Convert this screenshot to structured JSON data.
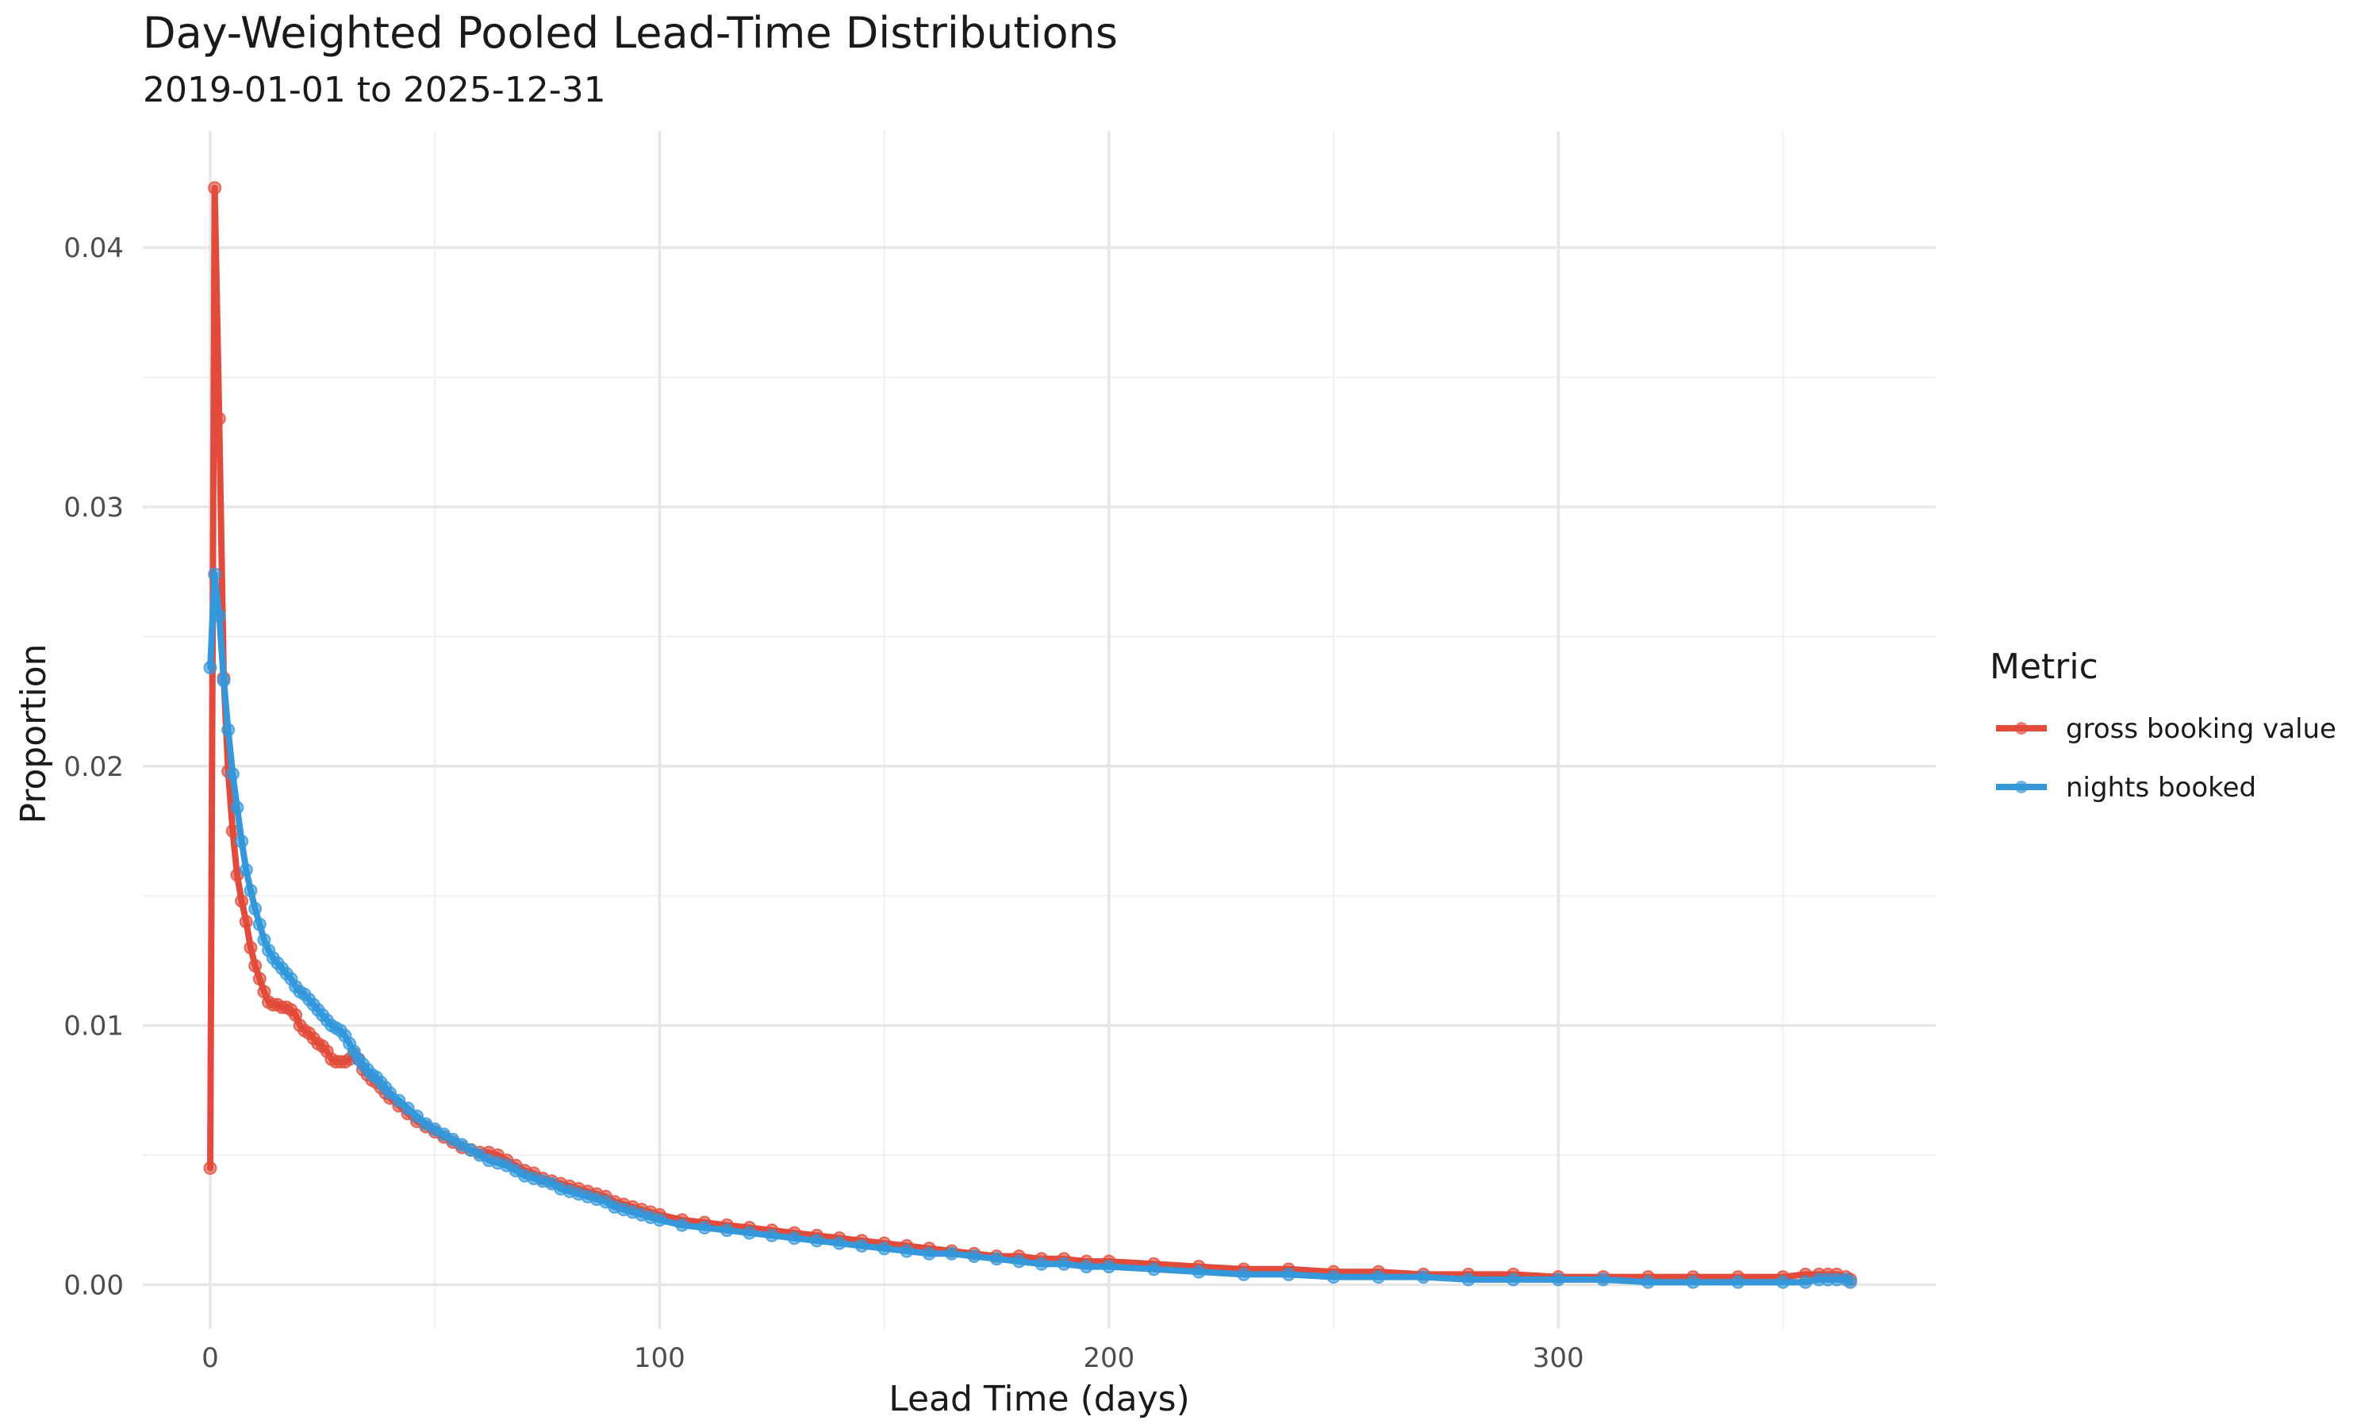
{
  "chart_data": {
    "type": "line",
    "title": "Day-Weighted Pooled Lead-Time Distributions",
    "subtitle": "2019-01-01 to 2025-12-31",
    "xlabel": "Lead Time (days)",
    "ylabel": "Proportion",
    "xlim": [
      -15,
      384
    ],
    "ylim": [
      -0.0017,
      0.0445
    ],
    "x_ticks": [
      0,
      100,
      200,
      300
    ],
    "x_tick_labels": [
      "0",
      "100",
      "200",
      "300"
    ],
    "y_ticks": [
      0.0,
      0.01,
      0.02,
      0.03,
      0.04
    ],
    "y_tick_labels": [
      "0.00",
      "0.01",
      "0.02",
      "0.03",
      "0.04"
    ],
    "grid": true,
    "legend": {
      "title": "Metric",
      "position": "right"
    },
    "series": [
      {
        "name": "gross booking value",
        "color": "#E24B3B",
        "x": [
          0,
          1,
          2,
          3,
          4,
          5,
          6,
          7,
          8,
          9,
          10,
          11,
          12,
          13,
          14,
          15,
          16,
          17,
          18,
          19,
          20,
          21,
          22,
          23,
          24,
          25,
          26,
          27,
          28,
          29,
          30,
          31,
          32,
          33,
          34,
          35,
          36,
          37,
          38,
          39,
          40,
          42,
          44,
          46,
          48,
          50,
          52,
          54,
          56,
          58,
          60,
          62,
          64,
          66,
          68,
          70,
          72,
          74,
          76,
          78,
          80,
          82,
          84,
          86,
          88,
          90,
          92,
          94,
          96,
          98,
          100,
          105,
          110,
          115,
          120,
          125,
          130,
          135,
          140,
          145,
          150,
          155,
          160,
          165,
          170,
          175,
          180,
          185,
          190,
          195,
          200,
          210,
          220,
          230,
          240,
          250,
          260,
          270,
          280,
          290,
          300,
          310,
          320,
          330,
          340,
          350,
          355,
          358,
          360,
          362,
          364,
          365
        ],
        "y": [
          0.0045,
          0.0423,
          0.0334,
          0.0234,
          0.0198,
          0.0175,
          0.0158,
          0.0148,
          0.014,
          0.013,
          0.0123,
          0.0118,
          0.0113,
          0.0109,
          0.0108,
          0.0108,
          0.0107,
          0.0107,
          0.0106,
          0.0104,
          0.01,
          0.0098,
          0.0097,
          0.0095,
          0.0093,
          0.0092,
          0.009,
          0.0087,
          0.0086,
          0.0086,
          0.0086,
          0.0087,
          0.0089,
          0.0087,
          0.0083,
          0.0081,
          0.0079,
          0.0078,
          0.0076,
          0.0074,
          0.0072,
          0.0069,
          0.0066,
          0.0063,
          0.0061,
          0.0059,
          0.0057,
          0.0055,
          0.0053,
          0.0052,
          0.0051,
          0.0051,
          0.005,
          0.0048,
          0.0046,
          0.0044,
          0.0043,
          0.0041,
          0.004,
          0.0039,
          0.0038,
          0.0037,
          0.0036,
          0.0035,
          0.0034,
          0.0032,
          0.0031,
          0.003,
          0.0029,
          0.0028,
          0.0027,
          0.0025,
          0.0024,
          0.0023,
          0.0022,
          0.0021,
          0.002,
          0.0019,
          0.0018,
          0.0017,
          0.0016,
          0.0015,
          0.0014,
          0.0013,
          0.0012,
          0.0011,
          0.0011,
          0.001,
          0.001,
          0.0009,
          0.0009,
          0.0008,
          0.0007,
          0.0006,
          0.0006,
          0.0005,
          0.0005,
          0.0004,
          0.0004,
          0.0004,
          0.0003,
          0.0003,
          0.0003,
          0.0003,
          0.0003,
          0.0003,
          0.0004,
          0.0004,
          0.0004,
          0.0004,
          0.0003,
          0.0002
        ]
      },
      {
        "name": "nights booked",
        "color": "#3498DB",
        "x": [
          0,
          1,
          2,
          3,
          4,
          5,
          6,
          7,
          8,
          9,
          10,
          11,
          12,
          13,
          14,
          15,
          16,
          17,
          18,
          19,
          20,
          21,
          22,
          23,
          24,
          25,
          26,
          27,
          28,
          29,
          30,
          31,
          32,
          33,
          34,
          35,
          36,
          37,
          38,
          39,
          40,
          42,
          44,
          46,
          48,
          50,
          52,
          54,
          56,
          58,
          60,
          62,
          64,
          66,
          68,
          70,
          72,
          74,
          76,
          78,
          80,
          82,
          84,
          86,
          88,
          90,
          92,
          94,
          96,
          98,
          100,
          105,
          110,
          115,
          120,
          125,
          130,
          135,
          140,
          145,
          150,
          155,
          160,
          165,
          170,
          175,
          180,
          185,
          190,
          195,
          200,
          210,
          220,
          230,
          240,
          250,
          260,
          270,
          280,
          290,
          300,
          310,
          320,
          330,
          340,
          350,
          355,
          358,
          360,
          362,
          364,
          365
        ],
        "y": [
          0.0238,
          0.0274,
          0.0258,
          0.0233,
          0.0214,
          0.0197,
          0.0184,
          0.0171,
          0.016,
          0.0152,
          0.0145,
          0.0139,
          0.0133,
          0.0129,
          0.0126,
          0.0124,
          0.0122,
          0.012,
          0.0118,
          0.0115,
          0.0113,
          0.0112,
          0.011,
          0.0108,
          0.0106,
          0.0104,
          0.0102,
          0.01,
          0.0099,
          0.0098,
          0.0096,
          0.0093,
          0.009,
          0.0087,
          0.0085,
          0.0083,
          0.0081,
          0.008,
          0.0078,
          0.0076,
          0.0074,
          0.0071,
          0.0068,
          0.0065,
          0.0062,
          0.006,
          0.0058,
          0.0056,
          0.0054,
          0.0052,
          0.005,
          0.0048,
          0.0047,
          0.0046,
          0.0044,
          0.0042,
          0.0041,
          0.004,
          0.0039,
          0.0037,
          0.0036,
          0.0035,
          0.0034,
          0.0033,
          0.0032,
          0.003,
          0.0029,
          0.0028,
          0.0027,
          0.0026,
          0.0025,
          0.0023,
          0.0022,
          0.0021,
          0.002,
          0.0019,
          0.0018,
          0.0017,
          0.0016,
          0.0015,
          0.0014,
          0.0013,
          0.0012,
          0.0012,
          0.0011,
          0.001,
          0.0009,
          0.0008,
          0.0008,
          0.0007,
          0.0007,
          0.0006,
          0.0005,
          0.0004,
          0.0004,
          0.0003,
          0.0003,
          0.0003,
          0.0002,
          0.0002,
          0.0002,
          0.0002,
          0.0001,
          0.0001,
          0.0001,
          0.0001,
          0.0001,
          0.0002,
          0.0002,
          0.0002,
          0.0002,
          0.0001
        ]
      }
    ]
  }
}
